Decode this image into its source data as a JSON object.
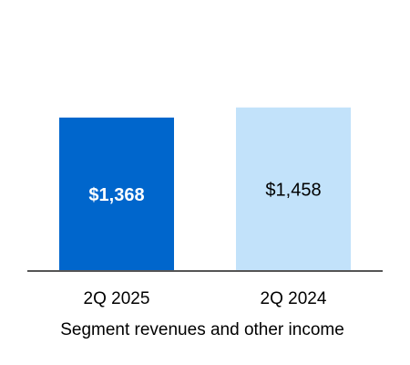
{
  "chart_data": {
    "type": "bar",
    "categories": [
      "2Q 2025",
      "2Q 2024"
    ],
    "values": [
      1368,
      1458
    ],
    "data_labels": [
      "$1,368",
      "$1,458"
    ],
    "xlabel": "Segment revenues and other income",
    "ylabel": "",
    "ylim": [
      0,
      1700
    ],
    "grid": false,
    "legend": "none",
    "colors": {
      "bars": [
        "#0066CC",
        "#C2E2FA"
      ],
      "labels": [
        "#FFFFFF",
        "#000000"
      ],
      "axis": "#555555"
    }
  }
}
